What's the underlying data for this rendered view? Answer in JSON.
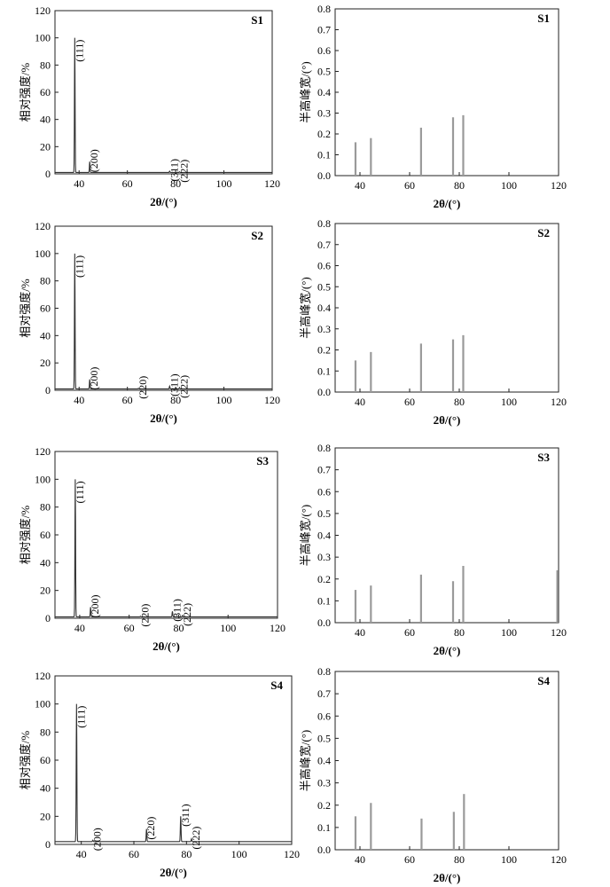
{
  "labels": {
    "xlabel": "2θ/(°)",
    "ylabel_xrd": "相对强度/%",
    "ylabel_fwhm": "半高峰宽/(°)"
  },
  "chart_data": [
    {
      "type": "line",
      "panel": "S1-xrd",
      "sample": "S1",
      "xlim": [
        30,
        120
      ],
      "ylim": [
        0,
        120
      ],
      "xticks": [
        40,
        60,
        80,
        100,
        120
      ],
      "yticks": [
        0,
        20,
        40,
        60,
        80,
        100,
        120
      ],
      "grid": false,
      "baseline": 1,
      "peaks": [
        {
          "x": 38.2,
          "y": 100,
          "label": "(111)"
        },
        {
          "x": 44.4,
          "y": 9,
          "label": "(200)"
        },
        {
          "x": 77.5,
          "y": 2,
          "label": "(311)"
        },
        {
          "x": 81.6,
          "y": 1.5,
          "label": "(222)"
        }
      ]
    },
    {
      "type": "bar",
      "panel": "S1-fwhm",
      "sample": "S1",
      "xlim": [
        30,
        120
      ],
      "ylim": [
        0,
        0.8
      ],
      "xticks": [
        40,
        60,
        80,
        100,
        120
      ],
      "yticks": [
        0,
        0.1,
        0.2,
        0.3,
        0.4,
        0.5,
        0.6,
        0.7,
        0.8
      ],
      "grid": false,
      "bars": [
        {
          "x": 38.2,
          "y": 0.16
        },
        {
          "x": 44.4,
          "y": 0.18
        },
        {
          "x": 64.6,
          "y": 0.23
        },
        {
          "x": 77.5,
          "y": 0.28
        },
        {
          "x": 81.6,
          "y": 0.29
        }
      ]
    },
    {
      "type": "line",
      "panel": "S2-xrd",
      "sample": "S2",
      "xlim": [
        30,
        120
      ],
      "ylim": [
        0,
        120
      ],
      "xticks": [
        40,
        60,
        80,
        100,
        120
      ],
      "yticks": [
        0,
        20,
        40,
        60,
        80,
        100,
        120
      ],
      "grid": false,
      "baseline": 1,
      "peaks": [
        {
          "x": 38.2,
          "y": 100,
          "label": "(111)"
        },
        {
          "x": 44.4,
          "y": 8,
          "label": "(200)"
        },
        {
          "x": 64.6,
          "y": 1.5,
          "label": "(220)"
        },
        {
          "x": 77.5,
          "y": 3,
          "label": "(311)"
        },
        {
          "x": 81.6,
          "y": 2,
          "label": "(222)"
        }
      ]
    },
    {
      "type": "bar",
      "panel": "S2-fwhm",
      "sample": "S2",
      "xlim": [
        30,
        120
      ],
      "ylim": [
        0,
        0.8
      ],
      "xticks": [
        40,
        60,
        80,
        100,
        120
      ],
      "yticks": [
        0,
        0.1,
        0.2,
        0.3,
        0.4,
        0.5,
        0.6,
        0.7,
        0.8
      ],
      "grid": false,
      "bars": [
        {
          "x": 38.2,
          "y": 0.15
        },
        {
          "x": 44.4,
          "y": 0.19
        },
        {
          "x": 64.6,
          "y": 0.23
        },
        {
          "x": 77.5,
          "y": 0.25
        },
        {
          "x": 81.6,
          "y": 0.27
        }
      ]
    },
    {
      "type": "line",
      "panel": "S3-xrd",
      "sample": "S3",
      "xlim": [
        30,
        120
      ],
      "ylim": [
        0,
        120
      ],
      "xticks": [
        40,
        60,
        80,
        100,
        120
      ],
      "yticks": [
        0,
        20,
        40,
        60,
        80,
        100,
        120
      ],
      "grid": false,
      "baseline": 1,
      "peaks": [
        {
          "x": 38.2,
          "y": 100,
          "label": "(111)"
        },
        {
          "x": 44.4,
          "y": 8,
          "label": "(200)"
        },
        {
          "x": 64.6,
          "y": 1.5,
          "label": "(220)"
        },
        {
          "x": 77.5,
          "y": 5,
          "label": "(311)"
        },
        {
          "x": 81.6,
          "y": 2,
          "label": "(222)"
        }
      ]
    },
    {
      "type": "bar",
      "panel": "S3-fwhm",
      "sample": "S3",
      "xlim": [
        30,
        120
      ],
      "ylim": [
        0,
        0.8
      ],
      "xticks": [
        40,
        60,
        80,
        100,
        120
      ],
      "yticks": [
        0,
        0.1,
        0.2,
        0.3,
        0.4,
        0.5,
        0.6,
        0.7,
        0.8
      ],
      "grid": false,
      "bars": [
        {
          "x": 38.2,
          "y": 0.15
        },
        {
          "x": 44.4,
          "y": 0.17
        },
        {
          "x": 64.6,
          "y": 0.22
        },
        {
          "x": 77.5,
          "y": 0.19
        },
        {
          "x": 81.6,
          "y": 0.26
        },
        {
          "x": 119.5,
          "y": 0.24
        }
      ]
    },
    {
      "type": "line",
      "panel": "S4-xrd",
      "sample": "S4",
      "xlim": [
        30,
        120
      ],
      "ylim": [
        0,
        120
      ],
      "xticks": [
        40,
        60,
        80,
        100,
        120
      ],
      "yticks": [
        0,
        20,
        40,
        60,
        80,
        100,
        120
      ],
      "grid": false,
      "baseline": 2,
      "peaks": [
        {
          "x": 38.2,
          "y": 100,
          "label": "(111)"
        },
        {
          "x": 44.4,
          "y": 3,
          "label": "(200)"
        },
        {
          "x": 64.8,
          "y": 11,
          "label": "(220)"
        },
        {
          "x": 77.8,
          "y": 20,
          "label": "(311)"
        },
        {
          "x": 81.9,
          "y": 4,
          "label": "(222)"
        }
      ]
    },
    {
      "type": "bar",
      "panel": "S4-fwhm",
      "sample": "S4",
      "xlim": [
        30,
        120
      ],
      "ylim": [
        0,
        0.8
      ],
      "xticks": [
        40,
        60,
        80,
        100,
        120
      ],
      "yticks": [
        0,
        0.1,
        0.2,
        0.3,
        0.4,
        0.5,
        0.6,
        0.7,
        0.8
      ],
      "grid": false,
      "bars": [
        {
          "x": 38.2,
          "y": 0.15
        },
        {
          "x": 44.4,
          "y": 0.21
        },
        {
          "x": 64.8,
          "y": 0.14
        },
        {
          "x": 77.8,
          "y": 0.17
        },
        {
          "x": 81.9,
          "y": 0.25
        }
      ]
    }
  ]
}
